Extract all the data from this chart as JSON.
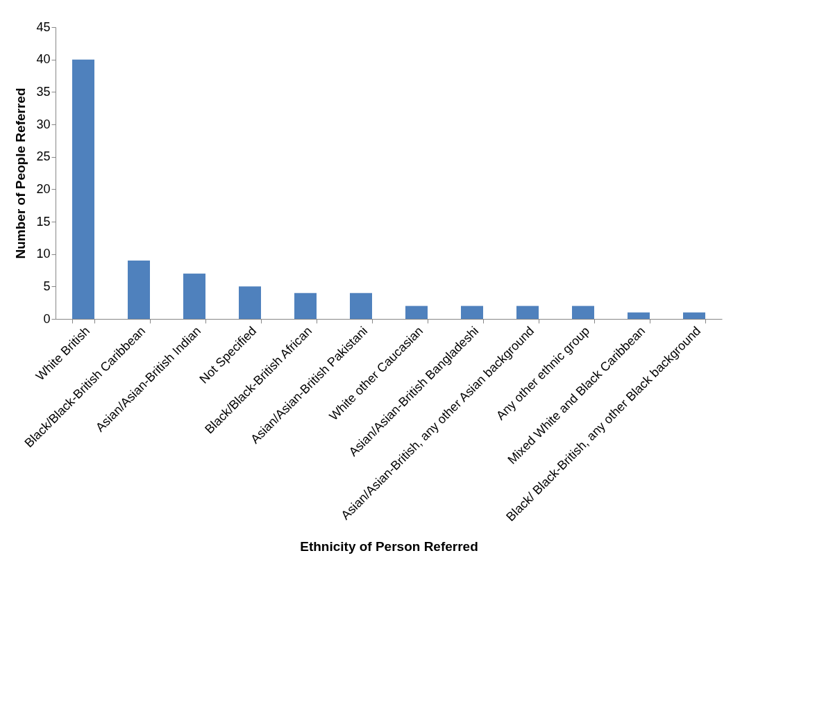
{
  "chart_data": {
    "type": "bar",
    "xlabel": "Ethnicity of Person Referred",
    "ylabel": "Number of People Referred",
    "categories": [
      "White British",
      "Black/Black-British Caribbean",
      "Asian/Asian-British Indian",
      "Not Specified",
      "Black/Black-British African",
      "Asian/Asian-British Pakistani",
      "White other Caucasian",
      "Asian/Asian-British Bangladeshi",
      "Asian/Asian-British, any other Asian background",
      "Any other ethnic group",
      "Mixed White and Black Caribbean",
      "Black/ Black-British, any other Black background"
    ],
    "values": [
      40,
      9,
      7,
      5,
      4,
      4,
      2,
      2,
      2,
      2,
      1,
      1
    ],
    "color": "#4f81bd",
    "ylim": [
      0,
      45
    ],
    "yticks": [
      0,
      5,
      10,
      15,
      20,
      25,
      30,
      35,
      40,
      45
    ],
    "grid": false
  }
}
